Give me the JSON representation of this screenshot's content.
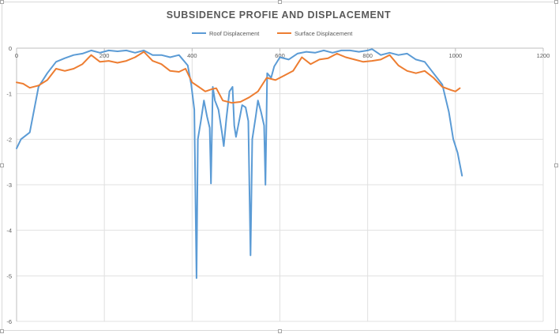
{
  "chart_data": {
    "type": "line",
    "title": "SUBSIDENCE PROFIE AND DISPLACEMENT",
    "xlabel": "",
    "ylabel": "",
    "xlim": [
      0,
      1200
    ],
    "ylim": [
      -6,
      0
    ],
    "x_ticks": [
      0,
      200,
      400,
      600,
      800,
      1000,
      1200
    ],
    "y_ticks": [
      0,
      -1,
      -2,
      -3,
      -4,
      -5,
      -6
    ],
    "grid": true,
    "legend_position": "top",
    "series": [
      {
        "name": "Roof Displacement",
        "color": "#5b9bd5",
        "points": [
          [
            0,
            -2.2
          ],
          [
            10,
            -2.0
          ],
          [
            30,
            -1.85
          ],
          [
            50,
            -0.85
          ],
          [
            70,
            -0.55
          ],
          [
            90,
            -0.3
          ],
          [
            110,
            -0.22
          ],
          [
            130,
            -0.15
          ],
          [
            150,
            -0.12
          ],
          [
            170,
            -0.05
          ],
          [
            190,
            -0.1
          ],
          [
            210,
            -0.05
          ],
          [
            230,
            -0.07
          ],
          [
            250,
            -0.05
          ],
          [
            270,
            -0.1
          ],
          [
            290,
            -0.05
          ],
          [
            310,
            -0.15
          ],
          [
            330,
            -0.15
          ],
          [
            350,
            -0.2
          ],
          [
            370,
            -0.15
          ],
          [
            390,
            -0.38
          ],
          [
            398,
            -0.8
          ],
          [
            405,
            -1.35
          ],
          [
            410,
            -5.05
          ],
          [
            413,
            -2.0
          ],
          [
            420,
            -1.6
          ],
          [
            427,
            -1.15
          ],
          [
            434,
            -1.5
          ],
          [
            440,
            -1.75
          ],
          [
            443,
            -2.97
          ],
          [
            447,
            -0.85
          ],
          [
            452,
            -1.15
          ],
          [
            460,
            -1.35
          ],
          [
            468,
            -1.85
          ],
          [
            472,
            -2.15
          ],
          [
            478,
            -1.55
          ],
          [
            485,
            -0.95
          ],
          [
            492,
            -0.85
          ],
          [
            496,
            -1.7
          ],
          [
            500,
            -1.95
          ],
          [
            508,
            -1.55
          ],
          [
            514,
            -1.25
          ],
          [
            522,
            -1.3
          ],
          [
            528,
            -1.6
          ],
          [
            533,
            -4.55
          ],
          [
            537,
            -2.0
          ],
          [
            545,
            -1.5
          ],
          [
            550,
            -1.15
          ],
          [
            557,
            -1.4
          ],
          [
            564,
            -1.7
          ],
          [
            567,
            -3.0
          ],
          [
            571,
            -0.55
          ],
          [
            580,
            -0.65
          ],
          [
            587,
            -0.4
          ],
          [
            600,
            -0.2
          ],
          [
            620,
            -0.25
          ],
          [
            640,
            -0.12
          ],
          [
            660,
            -0.08
          ],
          [
            680,
            -0.1
          ],
          [
            700,
            -0.05
          ],
          [
            720,
            -0.1
          ],
          [
            740,
            -0.05
          ],
          [
            760,
            -0.05
          ],
          [
            780,
            -0.08
          ],
          [
            800,
            -0.05
          ],
          [
            810,
            -0.02
          ],
          [
            830,
            -0.15
          ],
          [
            850,
            -0.1
          ],
          [
            870,
            -0.15
          ],
          [
            890,
            -0.12
          ],
          [
            910,
            -0.25
          ],
          [
            930,
            -0.3
          ],
          [
            950,
            -0.55
          ],
          [
            970,
            -0.8
          ],
          [
            985,
            -1.4
          ],
          [
            995,
            -2.0
          ],
          [
            1005,
            -2.3
          ],
          [
            1015,
            -2.8
          ]
        ]
      },
      {
        "name": "Surface Displacement",
        "color": "#ed7d31",
        "points": [
          [
            0,
            -0.75
          ],
          [
            15,
            -0.78
          ],
          [
            30,
            -0.87
          ],
          [
            50,
            -0.82
          ],
          [
            70,
            -0.7
          ],
          [
            90,
            -0.45
          ],
          [
            110,
            -0.5
          ],
          [
            130,
            -0.45
          ],
          [
            150,
            -0.35
          ],
          [
            170,
            -0.15
          ],
          [
            190,
            -0.3
          ],
          [
            210,
            -0.28
          ],
          [
            230,
            -0.32
          ],
          [
            250,
            -0.28
          ],
          [
            270,
            -0.2
          ],
          [
            290,
            -0.08
          ],
          [
            310,
            -0.28
          ],
          [
            330,
            -0.35
          ],
          [
            350,
            -0.5
          ],
          [
            370,
            -0.52
          ],
          [
            385,
            -0.45
          ],
          [
            400,
            -0.75
          ],
          [
            415,
            -0.85
          ],
          [
            430,
            -0.95
          ],
          [
            445,
            -0.9
          ],
          [
            455,
            -0.88
          ],
          [
            470,
            -1.15
          ],
          [
            490,
            -1.2
          ],
          [
            510,
            -1.18
          ],
          [
            530,
            -1.08
          ],
          [
            550,
            -0.95
          ],
          [
            570,
            -0.65
          ],
          [
            590,
            -0.7
          ],
          [
            610,
            -0.6
          ],
          [
            630,
            -0.5
          ],
          [
            650,
            -0.2
          ],
          [
            670,
            -0.35
          ],
          [
            690,
            -0.25
          ],
          [
            710,
            -0.22
          ],
          [
            730,
            -0.12
          ],
          [
            750,
            -0.2
          ],
          [
            770,
            -0.25
          ],
          [
            790,
            -0.3
          ],
          [
            810,
            -0.28
          ],
          [
            830,
            -0.25
          ],
          [
            850,
            -0.15
          ],
          [
            870,
            -0.38
          ],
          [
            890,
            -0.5
          ],
          [
            910,
            -0.55
          ],
          [
            930,
            -0.5
          ],
          [
            950,
            -0.65
          ],
          [
            970,
            -0.85
          ],
          [
            990,
            -0.92
          ],
          [
            1000,
            -0.95
          ],
          [
            1010,
            -0.88
          ]
        ]
      }
    ]
  }
}
